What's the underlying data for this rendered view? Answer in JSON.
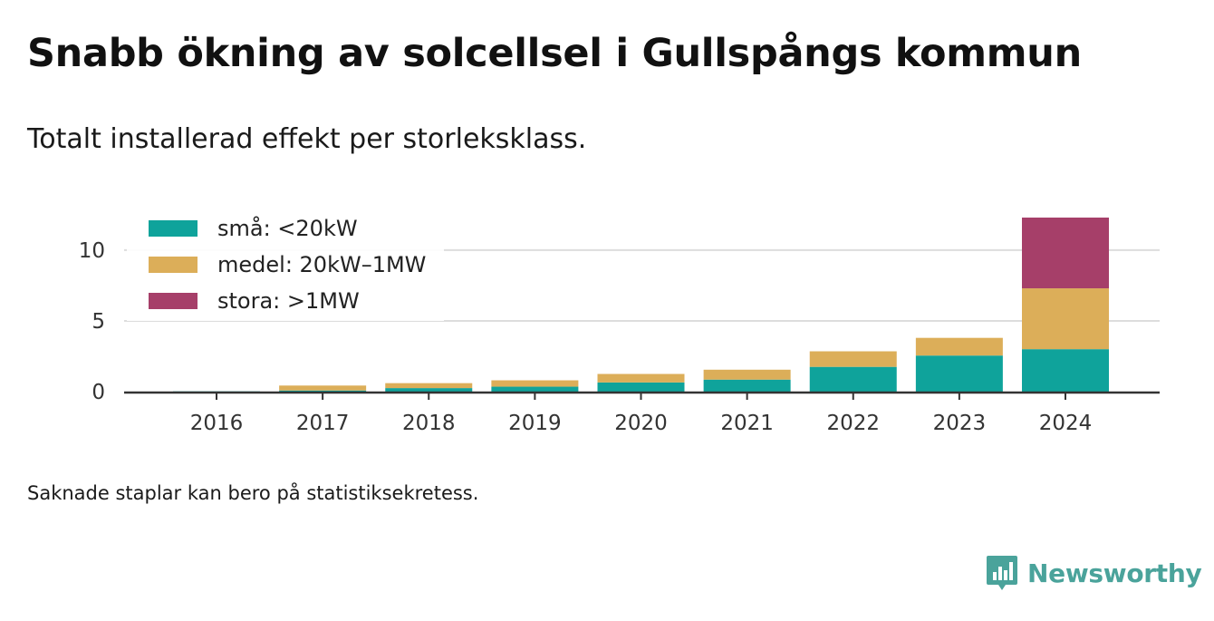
{
  "title": "Snabb ökning av solcellsel i Gullspångs kommun",
  "subtitle": "Totalt installerad effekt per storleksklass.",
  "note": "Saknade staplar kan bero på statistiksekretess.",
  "brand": {
    "name": "Newsworthy",
    "icon": "newsworthy-logo-icon",
    "color": "#4aa39b"
  },
  "chart_data": {
    "type": "bar",
    "stacked": true,
    "categories": [
      "2016",
      "2017",
      "2018",
      "2019",
      "2020",
      "2021",
      "2022",
      "2023",
      "2024"
    ],
    "series": [
      {
        "name": "små: <20kW",
        "color": "#0fa39b",
        "values": [
          0.02,
          0.08,
          0.25,
          0.35,
          0.65,
          0.85,
          1.75,
          2.55,
          3.0
        ]
      },
      {
        "name": "medel: 20kW–1MW",
        "color": "#dcae59",
        "values": [
          0.0,
          0.35,
          0.35,
          0.45,
          0.6,
          0.7,
          1.1,
          1.25,
          4.3
        ]
      },
      {
        "name": "stora: >1MW",
        "color": "#a63f69",
        "values": [
          0.0,
          0.0,
          0.0,
          0.0,
          0.0,
          0.0,
          0.0,
          0.0,
          5.0
        ]
      }
    ],
    "yticks": [
      0,
      5,
      10
    ],
    "ylim": [
      0,
      12.3
    ],
    "grid": true,
    "legend": "top-left"
  }
}
